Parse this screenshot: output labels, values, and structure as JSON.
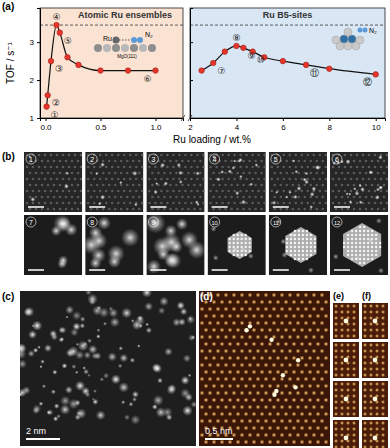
{
  "chart_data": [
    {
      "type": "line",
      "panel_label": "(a)",
      "x": [
        0.01,
        0.02,
        0.05,
        0.1,
        0.13,
        0.2,
        0.3,
        0.5,
        0.75,
        1.0
      ],
      "values": [
        1.3,
        1.6,
        2.5,
        3.45,
        3.25,
        2.6,
        2.4,
        2.25,
        2.25,
        2.25
      ],
      "point_labels": [
        "①",
        "②",
        "③",
        "④",
        "⑤",
        null,
        null,
        null,
        null,
        "⑥"
      ],
      "color": "#e8352b",
      "marker": "circle",
      "xlim": [
        -0.05,
        1.25
      ],
      "xticks": [
        {
          "value": 0,
          "label": "0.0"
        },
        {
          "value": 0.5,
          "label": "0.5"
        },
        {
          "value": 1,
          "label": "1.0"
        }
      ],
      "ylim": [
        1.0,
        3.9
      ],
      "yticks": [
        1,
        2,
        3
      ],
      "ylabel": "TOF / s⁻¹",
      "xlabel": "Ru loading / wt.%",
      "ref_line": 3.45,
      "region_label": "Atomic Ru ensembles",
      "inset_labels": [
        "Ru",
        "N₂",
        "MgO(111)"
      ],
      "tick_labels": true
    },
    {
      "type": "line",
      "x": [
        2.5,
        3,
        3.5,
        4,
        4.3,
        4.7,
        5.2,
        6,
        7,
        8,
        10
      ],
      "values": [
        2.25,
        2.45,
        2.75,
        2.9,
        2.85,
        2.75,
        2.6,
        2.5,
        2.4,
        2.3,
        2.15
      ],
      "point_labels": [
        null,
        "⑦",
        null,
        "⑧",
        "⑨",
        "⑩",
        null,
        null,
        "⑪",
        null,
        "⑫"
      ],
      "color": "#e8352b",
      "marker": "circle",
      "xlim": [
        2.0,
        10.4
      ],
      "xticks": [
        2,
        4,
        6,
        8,
        10
      ],
      "ylim": [
        1.0,
        3.9
      ],
      "yticks": [
        1,
        2,
        3
      ],
      "ref_line": 3.45,
      "region_label": "Ru B5-sites",
      "inset_labels": [
        "N₂"
      ],
      "tick_labels": "x"
    }
  ],
  "panel_b": {
    "label": "(b)",
    "images": [
      "1",
      "2",
      "3",
      "4",
      "5",
      "6",
      "7",
      "8",
      "9",
      "10",
      "11",
      "12"
    ]
  },
  "panel_c": {
    "label": "(c)",
    "scale_bar": "2 nm"
  },
  "panel_d": {
    "label": "(d)",
    "scale_bar": "0.5 nm"
  },
  "panel_e": {
    "label": "(e)"
  },
  "panel_f": {
    "label": "(f)"
  }
}
